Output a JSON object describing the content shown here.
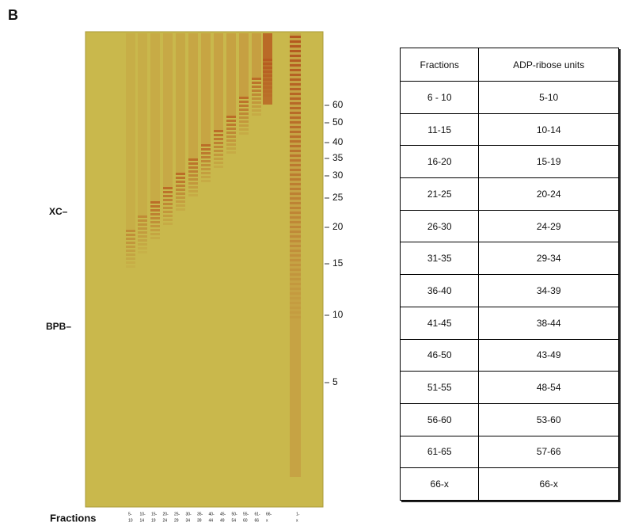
{
  "panel_label": "B",
  "gel": {
    "dye_markers": [
      "XC–",
      "BPB–"
    ],
    "size_markers": [
      "60",
      "50",
      "40",
      "35",
      "30",
      "25",
      "20",
      "15",
      "10",
      "5"
    ],
    "lanes_label": "Fractions",
    "lanes": [
      [
        "5-",
        "10"
      ],
      [
        "10-",
        "14"
      ],
      [
        "15-",
        "19"
      ],
      [
        "20-",
        "24"
      ],
      [
        "25-",
        "29"
      ],
      [
        "30-",
        "34"
      ],
      [
        "35-",
        "39"
      ],
      [
        "40-",
        "44"
      ],
      [
        "45-",
        "49"
      ],
      [
        "50-",
        "54"
      ],
      [
        "55-",
        "60"
      ],
      [
        "61-",
        "66"
      ],
      [
        "66-",
        "x"
      ],
      [
        "1-",
        "x"
      ]
    ]
  },
  "table": {
    "header": [
      "Fractions",
      "ADP-ribose units"
    ],
    "rows": [
      [
        "6 - 10",
        "5-10"
      ],
      [
        "11-15",
        "10-14"
      ],
      [
        "16-20",
        "15-19"
      ],
      [
        "21-25",
        "20-24"
      ],
      [
        "26-30",
        "24-29"
      ],
      [
        "31-35",
        "29-34"
      ],
      [
        "36-40",
        "34-39"
      ],
      [
        "41-45",
        "38-44"
      ],
      [
        "46-50",
        "43-49"
      ],
      [
        "51-55",
        "48-54"
      ],
      [
        "56-60",
        "53-60"
      ],
      [
        "61-65",
        "57-66"
      ],
      [
        "66-x",
        "66-x"
      ]
    ]
  }
}
